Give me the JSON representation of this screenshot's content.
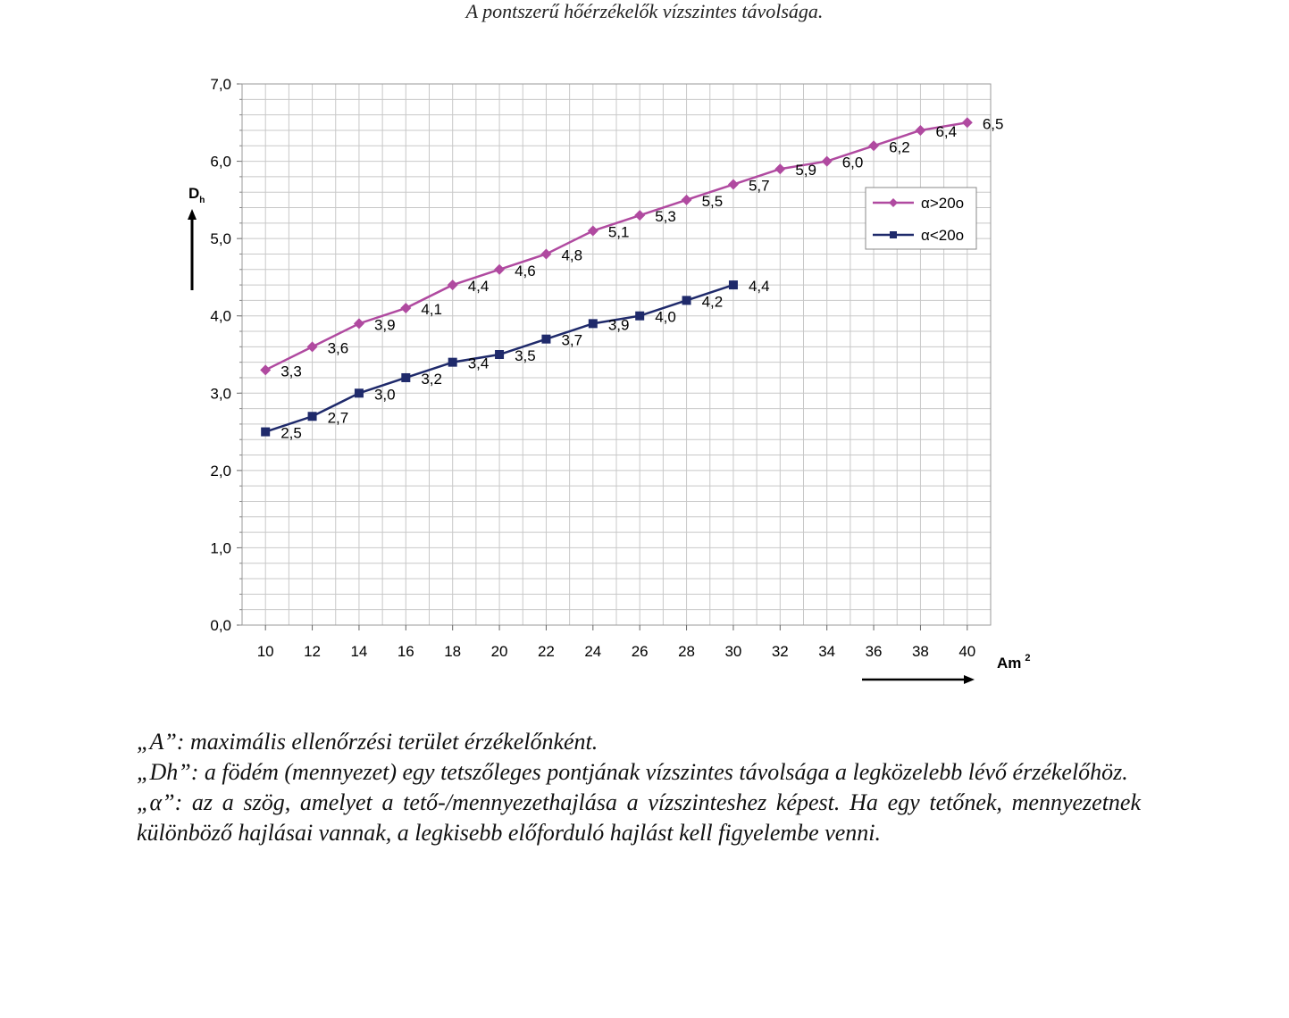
{
  "caption": "A pontszerű hőérzékelők vízszintes távolsága.",
  "chart_data": {
    "type": "line",
    "title": "",
    "xlabel": "Am",
    "xlabel_sup": "2",
    "ylabel": "D",
    "ylabel_sub": "h",
    "xlim": [
      9,
      41
    ],
    "ylim": [
      0,
      7
    ],
    "x_ticks": [
      "10",
      "12",
      "14",
      "16",
      "18",
      "20",
      "22",
      "24",
      "26",
      "28",
      "30",
      "32",
      "34",
      "36",
      "38",
      "40"
    ],
    "y_ticks": [
      "0,0",
      "1,0",
      "2,0",
      "3,0",
      "4,0",
      "5,0",
      "6,0",
      "7,0"
    ],
    "grid": true,
    "legend_position": "right",
    "series": [
      {
        "name": "α>20o",
        "color": "#b04aa0",
        "marker": "diamond",
        "x": [
          10,
          12,
          14,
          16,
          18,
          20,
          22,
          24,
          26,
          28,
          30,
          32,
          34,
          36,
          38,
          40
        ],
        "values": [
          3.3,
          3.6,
          3.9,
          4.1,
          4.4,
          4.6,
          4.8,
          5.1,
          5.3,
          5.5,
          5.7,
          5.9,
          6.0,
          6.2,
          6.4,
          6.5
        ],
        "labels": [
          "3,3",
          "3,6",
          "3,9",
          "4,1",
          "4,4",
          "4,6",
          "4,8",
          "5,1",
          "5,3",
          "5,5",
          "5,7",
          "5,9",
          "6,0",
          "6,2",
          "6,4",
          "6,5"
        ]
      },
      {
        "name": "α<20o",
        "color": "#1f2a6b",
        "marker": "square",
        "x": [
          10,
          12,
          14,
          16,
          18,
          20,
          22,
          24,
          26,
          28,
          30
        ],
        "values": [
          2.5,
          2.7,
          3.0,
          3.2,
          3.4,
          3.5,
          3.7,
          3.9,
          4.0,
          4.2,
          4.4
        ],
        "labels": [
          "2,5",
          "2,7",
          "3,0",
          "3,2",
          "3,4",
          "3,5",
          "3,7",
          "3,9",
          "4,0",
          "4,2",
          "4,4"
        ]
      }
    ]
  },
  "notes": [
    "„A”: maximális ellenőrzési terület érzékelőnként.",
    "„Dh”: a födém (mennyezet) egy tetszőleges pontjának vízszintes távolsága a legközelebb lévő érzékelőhöz.",
    "„α”: az a szög, amelyet a tető-/mennyezethajlása a vízszinteshez képest. Ha egy tetőnek, mennyezetnek különböző hajlásai vannak, a legkisebb előforduló hajlást kell figyelembe venni."
  ]
}
